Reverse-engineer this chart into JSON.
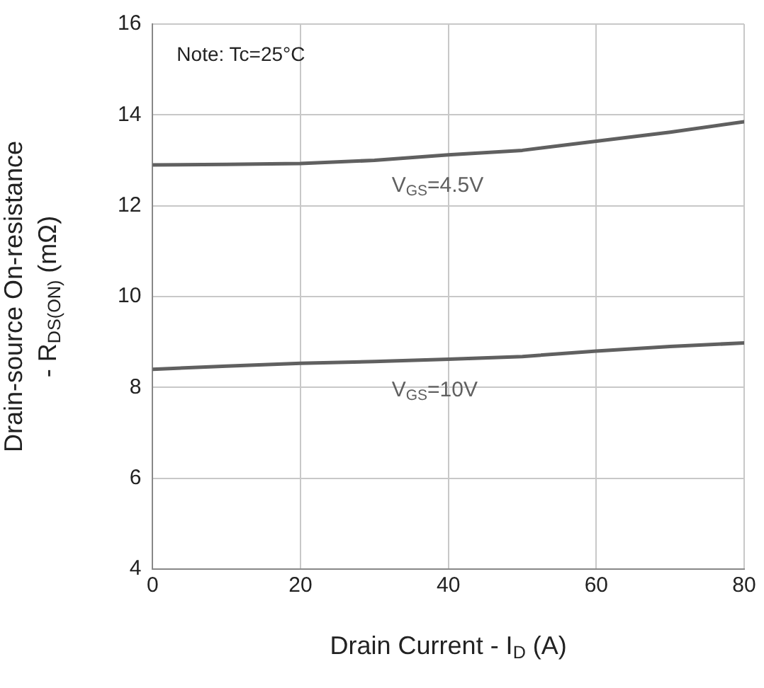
{
  "chart_data": {
    "type": "line",
    "xlabel": "Drain Current - I$_{D}$ (A)",
    "ylabel": "Drain-source On-resistance\n- R$_{DS(ON)}$ (mΩ)",
    "series": [
      {
        "name": "V$_{GS}$=4.5V",
        "color": "#606060",
        "x": [
          0,
          10,
          20,
          30,
          40,
          50,
          60,
          70,
          80
        ],
        "values": [
          12.9,
          12.91,
          12.93,
          13.0,
          13.12,
          13.22,
          13.42,
          13.62,
          13.85
        ]
      },
      {
        "name": "V$_{GS}$=10V",
        "color": "#606060",
        "x": [
          0,
          10,
          20,
          30,
          40,
          50,
          60,
          70,
          80
        ],
        "values": [
          8.4,
          8.47,
          8.53,
          8.57,
          8.62,
          8.68,
          8.8,
          8.9,
          8.98
        ]
      }
    ],
    "xlim": [
      0,
      80
    ],
    "xticks": [
      0,
      20,
      40,
      60,
      80
    ],
    "ylim": [
      4,
      16
    ],
    "yticks": [
      4,
      6,
      8,
      10,
      12,
      14,
      16
    ],
    "grid": true,
    "legend": false,
    "marker": "none",
    "line_style": "solid",
    "annotations": [
      "Note: Tc=25°C"
    ]
  }
}
